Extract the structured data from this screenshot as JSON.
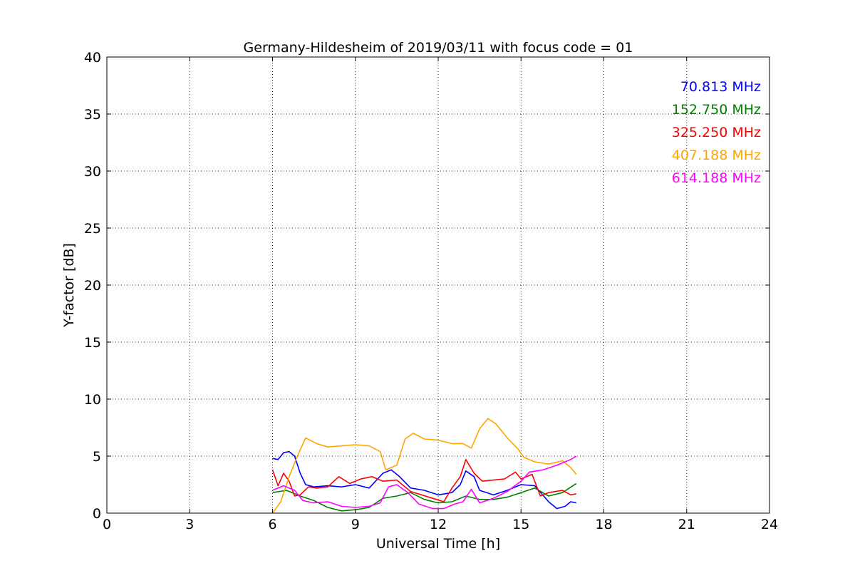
{
  "chart_data": {
    "type": "line",
    "title": "Germany-Hildesheim of 2019/03/11 with focus code = 01",
    "xlabel": "Universal Time [h]",
    "ylabel": "Y-factor [dB]",
    "xlim": [
      0,
      24
    ],
    "ylim": [
      0,
      40
    ],
    "xticks": [
      "0",
      "3",
      "6",
      "9",
      "12",
      "15",
      "18",
      "21",
      "24"
    ],
    "yticks": [
      "0",
      "5",
      "10",
      "15",
      "20",
      "25",
      "30",
      "35",
      "40"
    ],
    "grid": true,
    "legend_position": "top-right",
    "series": [
      {
        "name": "70.813 MHz",
        "color": "#0000ff",
        "points": [
          [
            6.0,
            4.8
          ],
          [
            6.2,
            4.7
          ],
          [
            6.4,
            5.3
          ],
          [
            6.6,
            5.4
          ],
          [
            6.8,
            5.0
          ],
          [
            7.0,
            3.5
          ],
          [
            7.2,
            2.5
          ],
          [
            7.5,
            2.3
          ],
          [
            8.0,
            2.4
          ],
          [
            8.5,
            2.3
          ],
          [
            9.0,
            2.5
          ],
          [
            9.5,
            2.2
          ],
          [
            10.0,
            3.5
          ],
          [
            10.3,
            3.8
          ],
          [
            10.6,
            3.2
          ],
          [
            11.0,
            2.2
          ],
          [
            11.5,
            2.0
          ],
          [
            12.0,
            1.6
          ],
          [
            12.5,
            1.8
          ],
          [
            12.8,
            2.5
          ],
          [
            13.0,
            3.7
          ],
          [
            13.3,
            3.2
          ],
          [
            13.5,
            2.0
          ],
          [
            14.0,
            1.6
          ],
          [
            14.5,
            2.0
          ],
          [
            15.0,
            2.5
          ],
          [
            15.5,
            2.4
          ],
          [
            16.0,
            1.0
          ],
          [
            16.3,
            0.4
          ],
          [
            16.6,
            0.6
          ],
          [
            16.8,
            1.0
          ],
          [
            17.0,
            0.9
          ]
        ]
      },
      {
        "name": "152.750 MHz",
        "color": "#008000",
        "points": [
          [
            6.0,
            1.8
          ],
          [
            6.5,
            2.0
          ],
          [
            7.0,
            1.5
          ],
          [
            7.5,
            1.1
          ],
          [
            8.0,
            0.5
          ],
          [
            8.5,
            0.2
          ],
          [
            9.0,
            0.3
          ],
          [
            9.5,
            0.5
          ],
          [
            10.0,
            1.3
          ],
          [
            10.5,
            1.5
          ],
          [
            11.0,
            1.8
          ],
          [
            11.5,
            1.2
          ],
          [
            12.0,
            0.9
          ],
          [
            12.5,
            1.0
          ],
          [
            13.0,
            1.5
          ],
          [
            13.5,
            1.2
          ],
          [
            14.0,
            1.2
          ],
          [
            14.5,
            1.4
          ],
          [
            15.0,
            1.8
          ],
          [
            15.5,
            2.2
          ],
          [
            16.0,
            1.5
          ],
          [
            16.5,
            1.8
          ],
          [
            17.0,
            2.6
          ]
        ]
      },
      {
        "name": "325.250 MHz",
        "color": "#ff0000",
        "points": [
          [
            6.0,
            3.8
          ],
          [
            6.2,
            2.4
          ],
          [
            6.4,
            3.5
          ],
          [
            6.6,
            2.8
          ],
          [
            6.8,
            1.5
          ],
          [
            7.0,
            1.6
          ],
          [
            7.3,
            2.3
          ],
          [
            7.6,
            2.2
          ],
          [
            8.0,
            2.3
          ],
          [
            8.4,
            3.2
          ],
          [
            8.8,
            2.6
          ],
          [
            9.2,
            3.0
          ],
          [
            9.6,
            3.2
          ],
          [
            10.0,
            2.8
          ],
          [
            10.5,
            2.9
          ],
          [
            11.0,
            1.9
          ],
          [
            11.4,
            1.6
          ],
          [
            11.8,
            1.3
          ],
          [
            12.2,
            1.0
          ],
          [
            12.5,
            2.2
          ],
          [
            12.8,
            3.2
          ],
          [
            13.0,
            4.7
          ],
          [
            13.3,
            3.5
          ],
          [
            13.6,
            2.8
          ],
          [
            14.0,
            2.9
          ],
          [
            14.4,
            3.0
          ],
          [
            14.8,
            3.6
          ],
          [
            15.0,
            3.0
          ],
          [
            15.4,
            3.4
          ],
          [
            15.7,
            1.5
          ],
          [
            16.0,
            1.8
          ],
          [
            16.5,
            2.0
          ],
          [
            16.8,
            1.6
          ],
          [
            17.0,
            1.7
          ]
        ]
      },
      {
        "name": "407.188 MHz",
        "color": "#ffa500",
        "points": [
          [
            6.0,
            0.0
          ],
          [
            6.3,
            1.0
          ],
          [
            6.6,
            3.2
          ],
          [
            6.9,
            5.0
          ],
          [
            7.2,
            6.6
          ],
          [
            7.6,
            6.1
          ],
          [
            8.0,
            5.8
          ],
          [
            8.5,
            5.9
          ],
          [
            9.0,
            6.0
          ],
          [
            9.5,
            5.9
          ],
          [
            9.9,
            5.4
          ],
          [
            10.1,
            3.8
          ],
          [
            10.5,
            4.2
          ],
          [
            10.8,
            6.5
          ],
          [
            11.1,
            7.0
          ],
          [
            11.5,
            6.5
          ],
          [
            12.0,
            6.4
          ],
          [
            12.5,
            6.1
          ],
          [
            12.9,
            6.1
          ],
          [
            13.2,
            5.7
          ],
          [
            13.5,
            7.4
          ],
          [
            13.8,
            8.3
          ],
          [
            14.1,
            7.8
          ],
          [
            14.5,
            6.6
          ],
          [
            14.9,
            5.6
          ],
          [
            15.1,
            4.9
          ],
          [
            15.5,
            4.5
          ],
          [
            16.0,
            4.3
          ],
          [
            16.5,
            4.6
          ],
          [
            16.8,
            4.0
          ],
          [
            17.0,
            3.4
          ]
        ]
      },
      {
        "name": "614.188 MHz",
        "color": "#ff00ff",
        "points": [
          [
            6.0,
            2.0
          ],
          [
            6.4,
            2.4
          ],
          [
            6.8,
            2.0
          ],
          [
            7.1,
            1.1
          ],
          [
            7.5,
            0.9
          ],
          [
            8.0,
            1.0
          ],
          [
            8.5,
            0.6
          ],
          [
            9.0,
            0.5
          ],
          [
            9.5,
            0.6
          ],
          [
            9.9,
            0.9
          ],
          [
            10.2,
            2.3
          ],
          [
            10.5,
            2.5
          ],
          [
            10.9,
            1.8
          ],
          [
            11.3,
            0.8
          ],
          [
            11.8,
            0.4
          ],
          [
            12.2,
            0.4
          ],
          [
            12.6,
            0.8
          ],
          [
            12.9,
            1.0
          ],
          [
            13.2,
            2.1
          ],
          [
            13.5,
            0.9
          ],
          [
            14.0,
            1.3
          ],
          [
            14.5,
            1.9
          ],
          [
            15.0,
            2.8
          ],
          [
            15.3,
            3.6
          ],
          [
            15.8,
            3.8
          ],
          [
            16.3,
            4.2
          ],
          [
            16.8,
            4.7
          ],
          [
            17.0,
            5.0
          ]
        ]
      }
    ]
  }
}
